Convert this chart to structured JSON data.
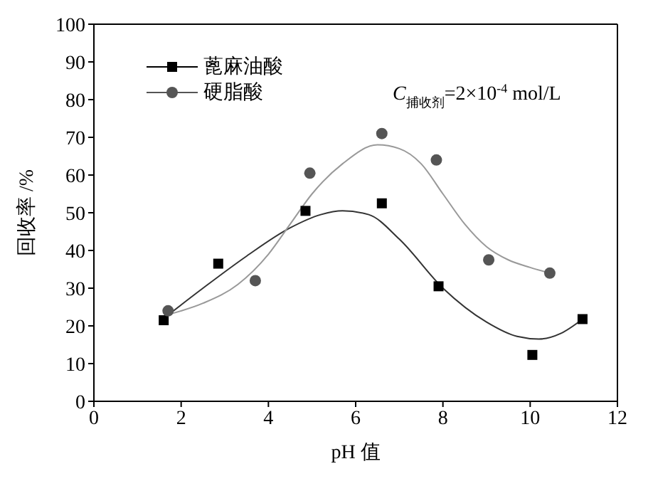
{
  "chart_data": {
    "type": "scatter",
    "xlabel": "pH 值",
    "ylabel": "回收率 /%",
    "annotations": [
      "C$_{捕收剂}$=2×10$^{-4}$ mol/L"
    ],
    "xlim": [
      0,
      12
    ],
    "xticks": [
      0,
      2,
      4,
      6,
      8,
      10,
      12
    ],
    "ylim": [
      0,
      100
    ],
    "yticks": [
      0,
      10,
      20,
      30,
      40,
      50,
      60,
      70,
      80,
      90,
      100
    ],
    "legend": "top left",
    "series": [
      {
        "name": "蓖麻油酸",
        "color": "#000000",
        "marker": "square",
        "x": [
          1.6,
          2.85,
          4.85,
          6.6,
          7.9,
          10.05,
          11.2
        ],
        "values": [
          21.5,
          36.5,
          50.5,
          52.5,
          30.5,
          12.3,
          21.8
        ]
      },
      {
        "name": "硬脂酸",
        "color": "#555555",
        "marker": "circle",
        "x": [
          1.7,
          3.7,
          4.95,
          6.6,
          7.85,
          9.05,
          10.45
        ],
        "values": [
          24,
          32,
          60.5,
          71,
          64,
          37.5,
          34
        ]
      },
      {
        "type": "line",
        "color": "#333333",
        "marker": "none",
        "x": [
          1.6,
          2.5,
          3.5,
          4.5,
          5.2,
          5.7,
          6.3,
          7,
          8,
          9,
          9.7,
          10.2,
          10.7,
          11.2
        ],
        "values": [
          22,
          30,
          38.5,
          46,
          49.5,
          50.5,
          49.5,
          43,
          30,
          21,
          17.2,
          16.5,
          18,
          21.8
        ]
      },
      {
        "type": "line",
        "color": "#999999",
        "marker": "none",
        "x": [
          1.7,
          2.5,
          3.3,
          4,
          4.5,
          5,
          5.7,
          6.5,
          7,
          7.5,
          8,
          8.5,
          9,
          9.5,
          10,
          10.45
        ],
        "values": [
          23,
          26,
          31,
          39,
          47,
          55,
          63,
          68,
          67,
          63,
          55,
          47,
          41,
          37.5,
          35.5,
          34
        ]
      }
    ]
  }
}
